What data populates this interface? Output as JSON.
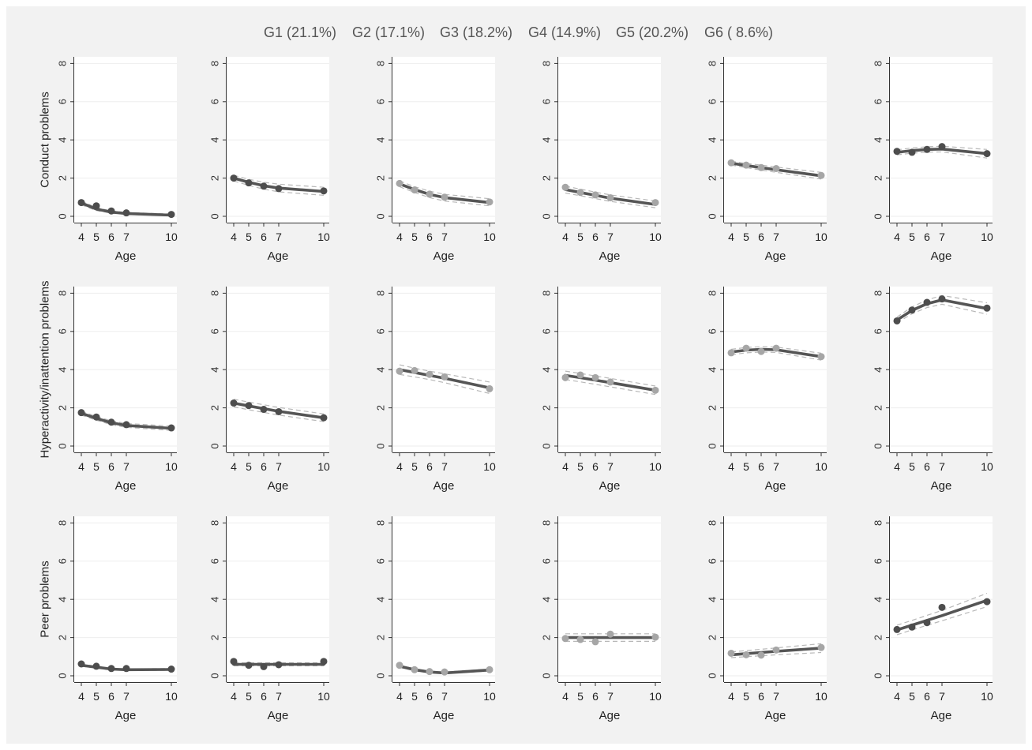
{
  "legend": [
    {
      "label": "G1 (21.1%)"
    },
    {
      "label": "G2 (17.1%)"
    },
    {
      "label": "G3 (18.2%)"
    },
    {
      "label": "G4 (14.9%)"
    },
    {
      "label": "G5 (20.2%)"
    },
    {
      "label": "G6 ( 8.6%)"
    }
  ],
  "colors": {
    "background": "#f2f2f2",
    "plot": "#ffffff",
    "line": "#555555",
    "dark_point": "#4d4d4d",
    "light_point": "#a6a6a6",
    "ci": "#b8b8b8"
  },
  "chart_data": {
    "type": "line",
    "rows": [
      "Conduct problems",
      "Hyperactivity/inattention problems",
      "Peer problems"
    ],
    "xlabel": "Age",
    "xticks": [
      4,
      5,
      6,
      7,
      10
    ],
    "yticks": [
      0,
      2,
      4,
      6,
      8
    ],
    "ylim": [
      0,
      8
    ],
    "xlim": [
      4,
      10
    ],
    "groups": [
      "G1",
      "G2",
      "G3",
      "G4",
      "G5",
      "G6"
    ],
    "point_shade": [
      "dark",
      "dark",
      "light",
      "light",
      "light",
      "dark"
    ],
    "panels": [
      [
        {
          "observed": [
            0.72,
            0.55,
            0.28,
            0.18,
            0.1
          ],
          "fitted": [
            0.7,
            0.38,
            0.22,
            0.15,
            0.06
          ],
          "lower": [
            0.6,
            0.3,
            0.17,
            0.1,
            0.03
          ],
          "upper": [
            0.8,
            0.46,
            0.28,
            0.2,
            0.12
          ]
        },
        {
          "observed": [
            2.0,
            1.75,
            1.58,
            1.45,
            1.33
          ],
          "fitted": [
            2.0,
            1.78,
            1.6,
            1.48,
            1.3
          ],
          "lower": [
            1.85,
            1.62,
            1.42,
            1.28,
            1.1
          ],
          "upper": [
            2.15,
            1.94,
            1.78,
            1.68,
            1.52
          ]
        },
        {
          "observed": [
            1.72,
            1.38,
            1.16,
            1.0,
            0.75
          ],
          "fitted": [
            1.7,
            1.4,
            1.15,
            0.98,
            0.72
          ],
          "lower": [
            1.55,
            1.25,
            0.98,
            0.8,
            0.55
          ],
          "upper": [
            1.85,
            1.55,
            1.32,
            1.15,
            0.92
          ]
        },
        {
          "observed": [
            1.52,
            1.25,
            1.12,
            0.97,
            0.72
          ],
          "fitted": [
            1.4,
            1.25,
            1.1,
            0.95,
            0.62
          ],
          "lower": [
            1.22,
            1.08,
            0.93,
            0.78,
            0.45
          ],
          "upper": [
            1.58,
            1.42,
            1.27,
            1.12,
            0.8
          ]
        },
        {
          "observed": [
            2.8,
            2.68,
            2.55,
            2.5,
            2.14
          ],
          "fitted": [
            2.78,
            2.66,
            2.55,
            2.44,
            2.12
          ],
          "lower": [
            2.68,
            2.55,
            2.42,
            2.3,
            1.95
          ],
          "upper": [
            2.88,
            2.77,
            2.68,
            2.58,
            2.3
          ]
        },
        {
          "observed": [
            3.4,
            3.35,
            3.5,
            3.65,
            3.28
          ],
          "fitted": [
            3.35,
            3.44,
            3.5,
            3.52,
            3.28
          ],
          "lower": [
            3.22,
            3.3,
            3.36,
            3.37,
            3.05
          ],
          "upper": [
            3.48,
            3.58,
            3.64,
            3.67,
            3.5
          ]
        }
      ],
      [
        {
          "observed": [
            1.75,
            1.52,
            1.25,
            1.12,
            0.95
          ],
          "fitted": [
            1.72,
            1.45,
            1.22,
            1.08,
            0.93
          ],
          "lower": [
            1.62,
            1.35,
            1.12,
            0.98,
            0.82
          ],
          "upper": [
            1.82,
            1.55,
            1.32,
            1.18,
            1.04
          ]
        },
        {
          "observed": [
            2.25,
            2.12,
            1.92,
            1.8,
            1.48
          ],
          "fitted": [
            2.25,
            2.1,
            1.96,
            1.82,
            1.48
          ],
          "lower": [
            2.05,
            1.9,
            1.76,
            1.62,
            1.28
          ],
          "upper": [
            2.45,
            2.3,
            2.16,
            2.02,
            1.68
          ]
        },
        {
          "observed": [
            3.92,
            3.95,
            3.75,
            3.62,
            3.0
          ],
          "fitted": [
            4.0,
            3.85,
            3.7,
            3.55,
            3.05
          ],
          "lower": [
            3.75,
            3.62,
            3.48,
            3.32,
            2.75
          ],
          "upper": [
            4.25,
            4.08,
            3.92,
            3.78,
            3.35
          ]
        },
        {
          "observed": [
            3.58,
            3.72,
            3.58,
            3.35,
            2.92
          ],
          "fitted": [
            3.7,
            3.58,
            3.45,
            3.32,
            2.92
          ],
          "lower": [
            3.48,
            3.36,
            3.23,
            3.1,
            2.7
          ],
          "upper": [
            3.92,
            3.8,
            3.67,
            3.54,
            3.14
          ]
        },
        {
          "observed": [
            4.88,
            5.12,
            4.95,
            5.12,
            4.68
          ],
          "fitted": [
            4.92,
            5.02,
            5.06,
            5.04,
            4.68
          ],
          "lower": [
            4.78,
            4.88,
            4.92,
            4.9,
            4.5
          ],
          "upper": [
            5.06,
            5.16,
            5.2,
            5.18,
            4.86
          ]
        },
        {
          "observed": [
            6.55,
            7.12,
            7.52,
            7.7,
            7.22
          ],
          "fitted": [
            6.6,
            7.1,
            7.45,
            7.65,
            7.2
          ],
          "lower": [
            6.45,
            6.92,
            7.25,
            7.42,
            6.9
          ],
          "upper": [
            6.75,
            7.28,
            7.65,
            7.88,
            7.5
          ]
        }
      ],
      [
        {
          "observed": [
            0.62,
            0.5,
            0.38,
            0.38,
            0.35
          ],
          "fitted": [
            0.55,
            0.45,
            0.35,
            0.32,
            0.33
          ],
          "lower": [
            0.5,
            0.4,
            0.31,
            0.28,
            0.28
          ],
          "upper": [
            0.6,
            0.5,
            0.39,
            0.36,
            0.38
          ]
        },
        {
          "observed": [
            0.75,
            0.55,
            0.48,
            0.58,
            0.75
          ],
          "fitted": [
            0.6,
            0.6,
            0.6,
            0.6,
            0.6
          ],
          "lower": [
            0.52,
            0.52,
            0.52,
            0.52,
            0.52
          ],
          "upper": [
            0.68,
            0.68,
            0.68,
            0.68,
            0.68
          ]
        },
        {
          "observed": [
            0.55,
            0.32,
            0.22,
            0.2,
            0.32
          ],
          "fitted": [
            0.5,
            0.32,
            0.2,
            0.15,
            0.3
          ],
          "lower": [
            0.45,
            0.27,
            0.16,
            0.12,
            0.25
          ],
          "upper": [
            0.55,
            0.37,
            0.24,
            0.2,
            0.35
          ]
        },
        {
          "observed": [
            1.95,
            1.9,
            1.78,
            2.18,
            2.02
          ],
          "fitted": [
            2.0,
            2.0,
            2.0,
            2.0,
            2.0
          ],
          "lower": [
            1.8,
            1.8,
            1.8,
            1.8,
            1.8
          ],
          "upper": [
            2.2,
            2.2,
            2.2,
            2.2,
            2.2
          ]
        },
        {
          "observed": [
            1.18,
            1.1,
            1.08,
            1.35,
            1.48
          ],
          "fitted": [
            1.1,
            1.16,
            1.22,
            1.28,
            1.45
          ],
          "lower": [
            0.95,
            1.0,
            1.05,
            1.1,
            1.22
          ],
          "upper": [
            1.25,
            1.32,
            1.39,
            1.46,
            1.68
          ]
        },
        {
          "observed": [
            2.42,
            2.55,
            2.78,
            3.58,
            3.88
          ],
          "fitted": [
            2.4,
            2.65,
            2.9,
            3.15,
            3.95
          ],
          "lower": [
            2.15,
            2.4,
            2.64,
            2.88,
            3.62
          ],
          "upper": [
            2.65,
            2.9,
            3.16,
            3.42,
            4.32
          ]
        }
      ]
    ]
  }
}
